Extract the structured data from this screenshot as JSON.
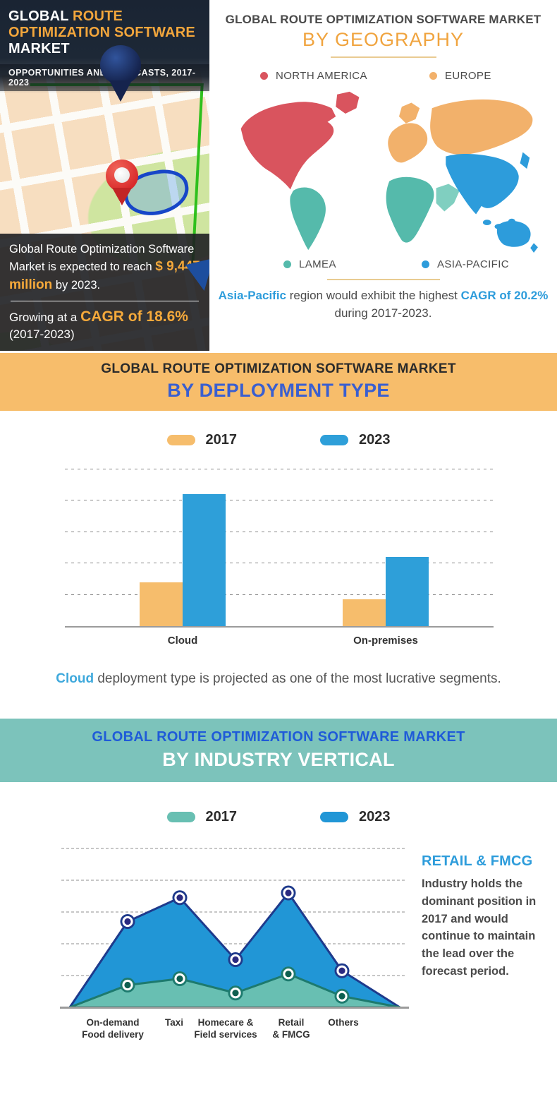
{
  "hero": {
    "title": {
      "w1": "GLOBAL",
      "o1": "ROUTE",
      "o2": "OPTIMIZATION SOFTWARE",
      "w2": "MARKET"
    },
    "subtitle": "OPPORTUNITIES AND FORECASTS, 2017-2023",
    "accent_color": "#f5a93b",
    "stat1": {
      "pre": "Global Route Optimization Software Market is expected to reach ",
      "highlight": "$ 9,447 million",
      "post": " by 2023."
    },
    "stat2": {
      "pre": "Growing at a ",
      "highlight": "CAGR of 18.6%",
      "post": "(2017-2023)"
    }
  },
  "geography": {
    "title_line1": "GLOBAL ROUTE OPTIMIZATION SOFTWARE MARKET",
    "title_line2": "BY GEOGRAPHY",
    "legend": [
      {
        "key": "north-america",
        "label": "NORTH AMERICA",
        "color": "#d9545e"
      },
      {
        "key": "europe",
        "label": "EUROPE",
        "color": "#f2b16b"
      },
      {
        "key": "lamea",
        "label": "LAMEA",
        "color": "#55baab"
      },
      {
        "key": "asia-pacific",
        "label": "ASIA-PACIFIC",
        "color": "#2d9cdb"
      }
    ],
    "lamea_light": "#80cfc0",
    "note": {
      "h1": "Asia-Pacific",
      "mid": " region would exhibit the highest ",
      "h2": "CAGR of 20.2%",
      "line2": "during 2017-2023.",
      "accent_color": "#2d9cdb"
    }
  },
  "deployment_section": {
    "banner_line1": "GLOBAL ROUTE OPTIMIZATION SOFTWARE MARKET",
    "banner_line2": "BY DEPLOYMENT TYPE",
    "banner_bg": "#f7bd6b",
    "banner_line2_color": "#3a5fd0",
    "note": {
      "h1": "Cloud",
      "post": " deployment type is projected as one of the most lucrative segments.",
      "accent_color": "#3fa9dc"
    }
  },
  "industry_section": {
    "banner_line1": "GLOBAL ROUTE OPTIMIZATION SOFTWARE MARKET",
    "banner_line2": "BY INDUSTRY VERTICAL",
    "banner_bg": "#7cc3bb",
    "banner_line1_color": "#1f5bd8",
    "sidenote": {
      "heading": "RETAIL & FMCG",
      "body": "Industry holds the dominant position in 2017 and would continue to maintain the lead over the forecast period."
    }
  },
  "chart_data": [
    {
      "id": "deployment",
      "type": "bar",
      "title": "Global Route Optimization Software Market by Deployment Type",
      "categories": [
        "Cloud",
        "On-premises"
      ],
      "series": [
        {
          "name": "2017",
          "color": "#f6bd6c",
          "values": [
            1.4,
            0.85
          ]
        },
        {
          "name": "2023",
          "color": "#2e9fd9",
          "values": [
            4.2,
            2.2
          ]
        }
      ],
      "xlabel": "",
      "ylabel": "",
      "ylim": [
        0,
        5.2
      ],
      "gridlines": 5,
      "grid": "dashed-horizontal",
      "value_note": "axis unlabeled; values in gridline units estimated from pixels",
      "legend_position": "top-center"
    },
    {
      "id": "industry",
      "type": "area",
      "title": "Global Route Optimization Software Market by Industry Vertical",
      "categories": [
        "On-demand\nFood delivery",
        "Taxi",
        "Homecare &\nField services",
        "Retail\n& FMCG",
        "Others"
      ],
      "series": [
        {
          "name": "2023",
          "color": "#2196d6",
          "stroke": "#1e3a8c",
          "marker": "#2b2a80",
          "values": [
            2.7,
            3.45,
            1.5,
            3.6,
            1.15
          ]
        },
        {
          "name": "2017",
          "color": "#68bfb2",
          "stroke": "#1d7a6e",
          "marker": "#0f5f50",
          "values": [
            0.7,
            0.9,
            0.45,
            1.05,
            0.35
          ]
        }
      ],
      "xlabel": "",
      "ylabel": "",
      "ylim": [
        0,
        5.2
      ],
      "gridlines": 5,
      "grid": "dashed-horizontal",
      "value_note": "axis unlabeled; values in gridline units estimated from pixels",
      "legend_position": "top-center"
    }
  ]
}
